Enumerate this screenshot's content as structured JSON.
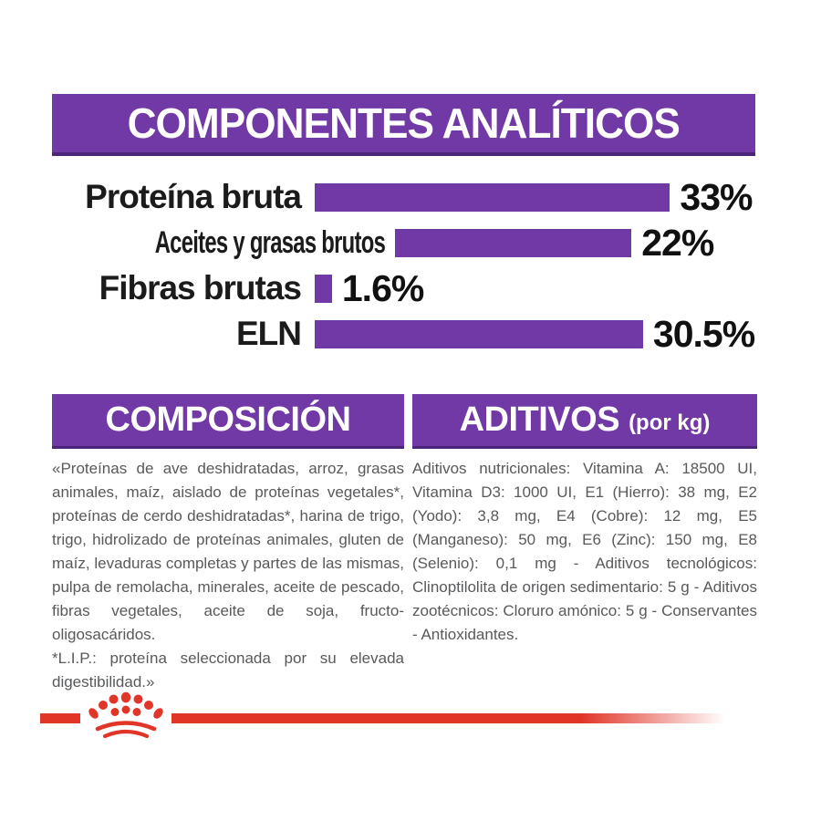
{
  "banner": {
    "title": "COMPONENTES ANALÍTICOS"
  },
  "chart_data": {
    "type": "bar",
    "orientation": "horizontal",
    "title": "COMPONENTES ANALÍTICOS",
    "categories": [
      "Proteína bruta",
      "Aceites y grasas brutos",
      "Fibras brutas",
      "ELN"
    ],
    "values": [
      33,
      22,
      1.6,
      30.5
    ],
    "value_labels": [
      "33%",
      "22%",
      "1.6%",
      "30.5%"
    ],
    "xlim": [
      0,
      34
    ],
    "grid": false,
    "legend": "none",
    "bar_color": "#7139A6"
  },
  "sections": {
    "composicion": {
      "title": "COMPOSICIÓN",
      "body": "«Proteínas de ave deshidratadas, arroz, grasas animales, maíz, aislado de proteínas vegetales*, proteínas de cerdo deshidratadas*, harina de trigo, trigo, hidrolizado de proteínas animales, gluten de maíz, levaduras completas y partes de las mismas, pulpa de remolacha, minerales, aceite de pescado, fibras vegetales, aceite de soja, fructo-oligosacáridos.",
      "note": "*L.I.P.: proteína seleccionada por su elevada digestibilidad.»"
    },
    "aditivos": {
      "title": "ADITIVOS",
      "subtitle": "(por kg)",
      "body": "Aditivos nutricionales: Vitamina A: 18500 UI, Vitamina D3: 1000 UI, E1 (Hierro): 38 mg, E2 (Yodo): 3,8 mg, E4 (Cobre): 12 mg, E5 (Manganeso): 50 mg, E6 (Zinc): 150 mg, E8 (Selenio): 0,1 mg - Aditivos tecnológicos: Clinoptilolita de origen sedimentario: 5 g - Aditivos zootécnicos: Cloruro amónico: 5 g - Conservantes - Antioxidantes."
    }
  },
  "footer": {
    "logo_name": "royal-canin-crown-logo"
  },
  "colors": {
    "purple": "#7139A6",
    "purple_dark_edge": "#4B2579",
    "red_accent": "#E13528",
    "body_text_gray": "#58595B",
    "chart_text_black": "#111111"
  }
}
